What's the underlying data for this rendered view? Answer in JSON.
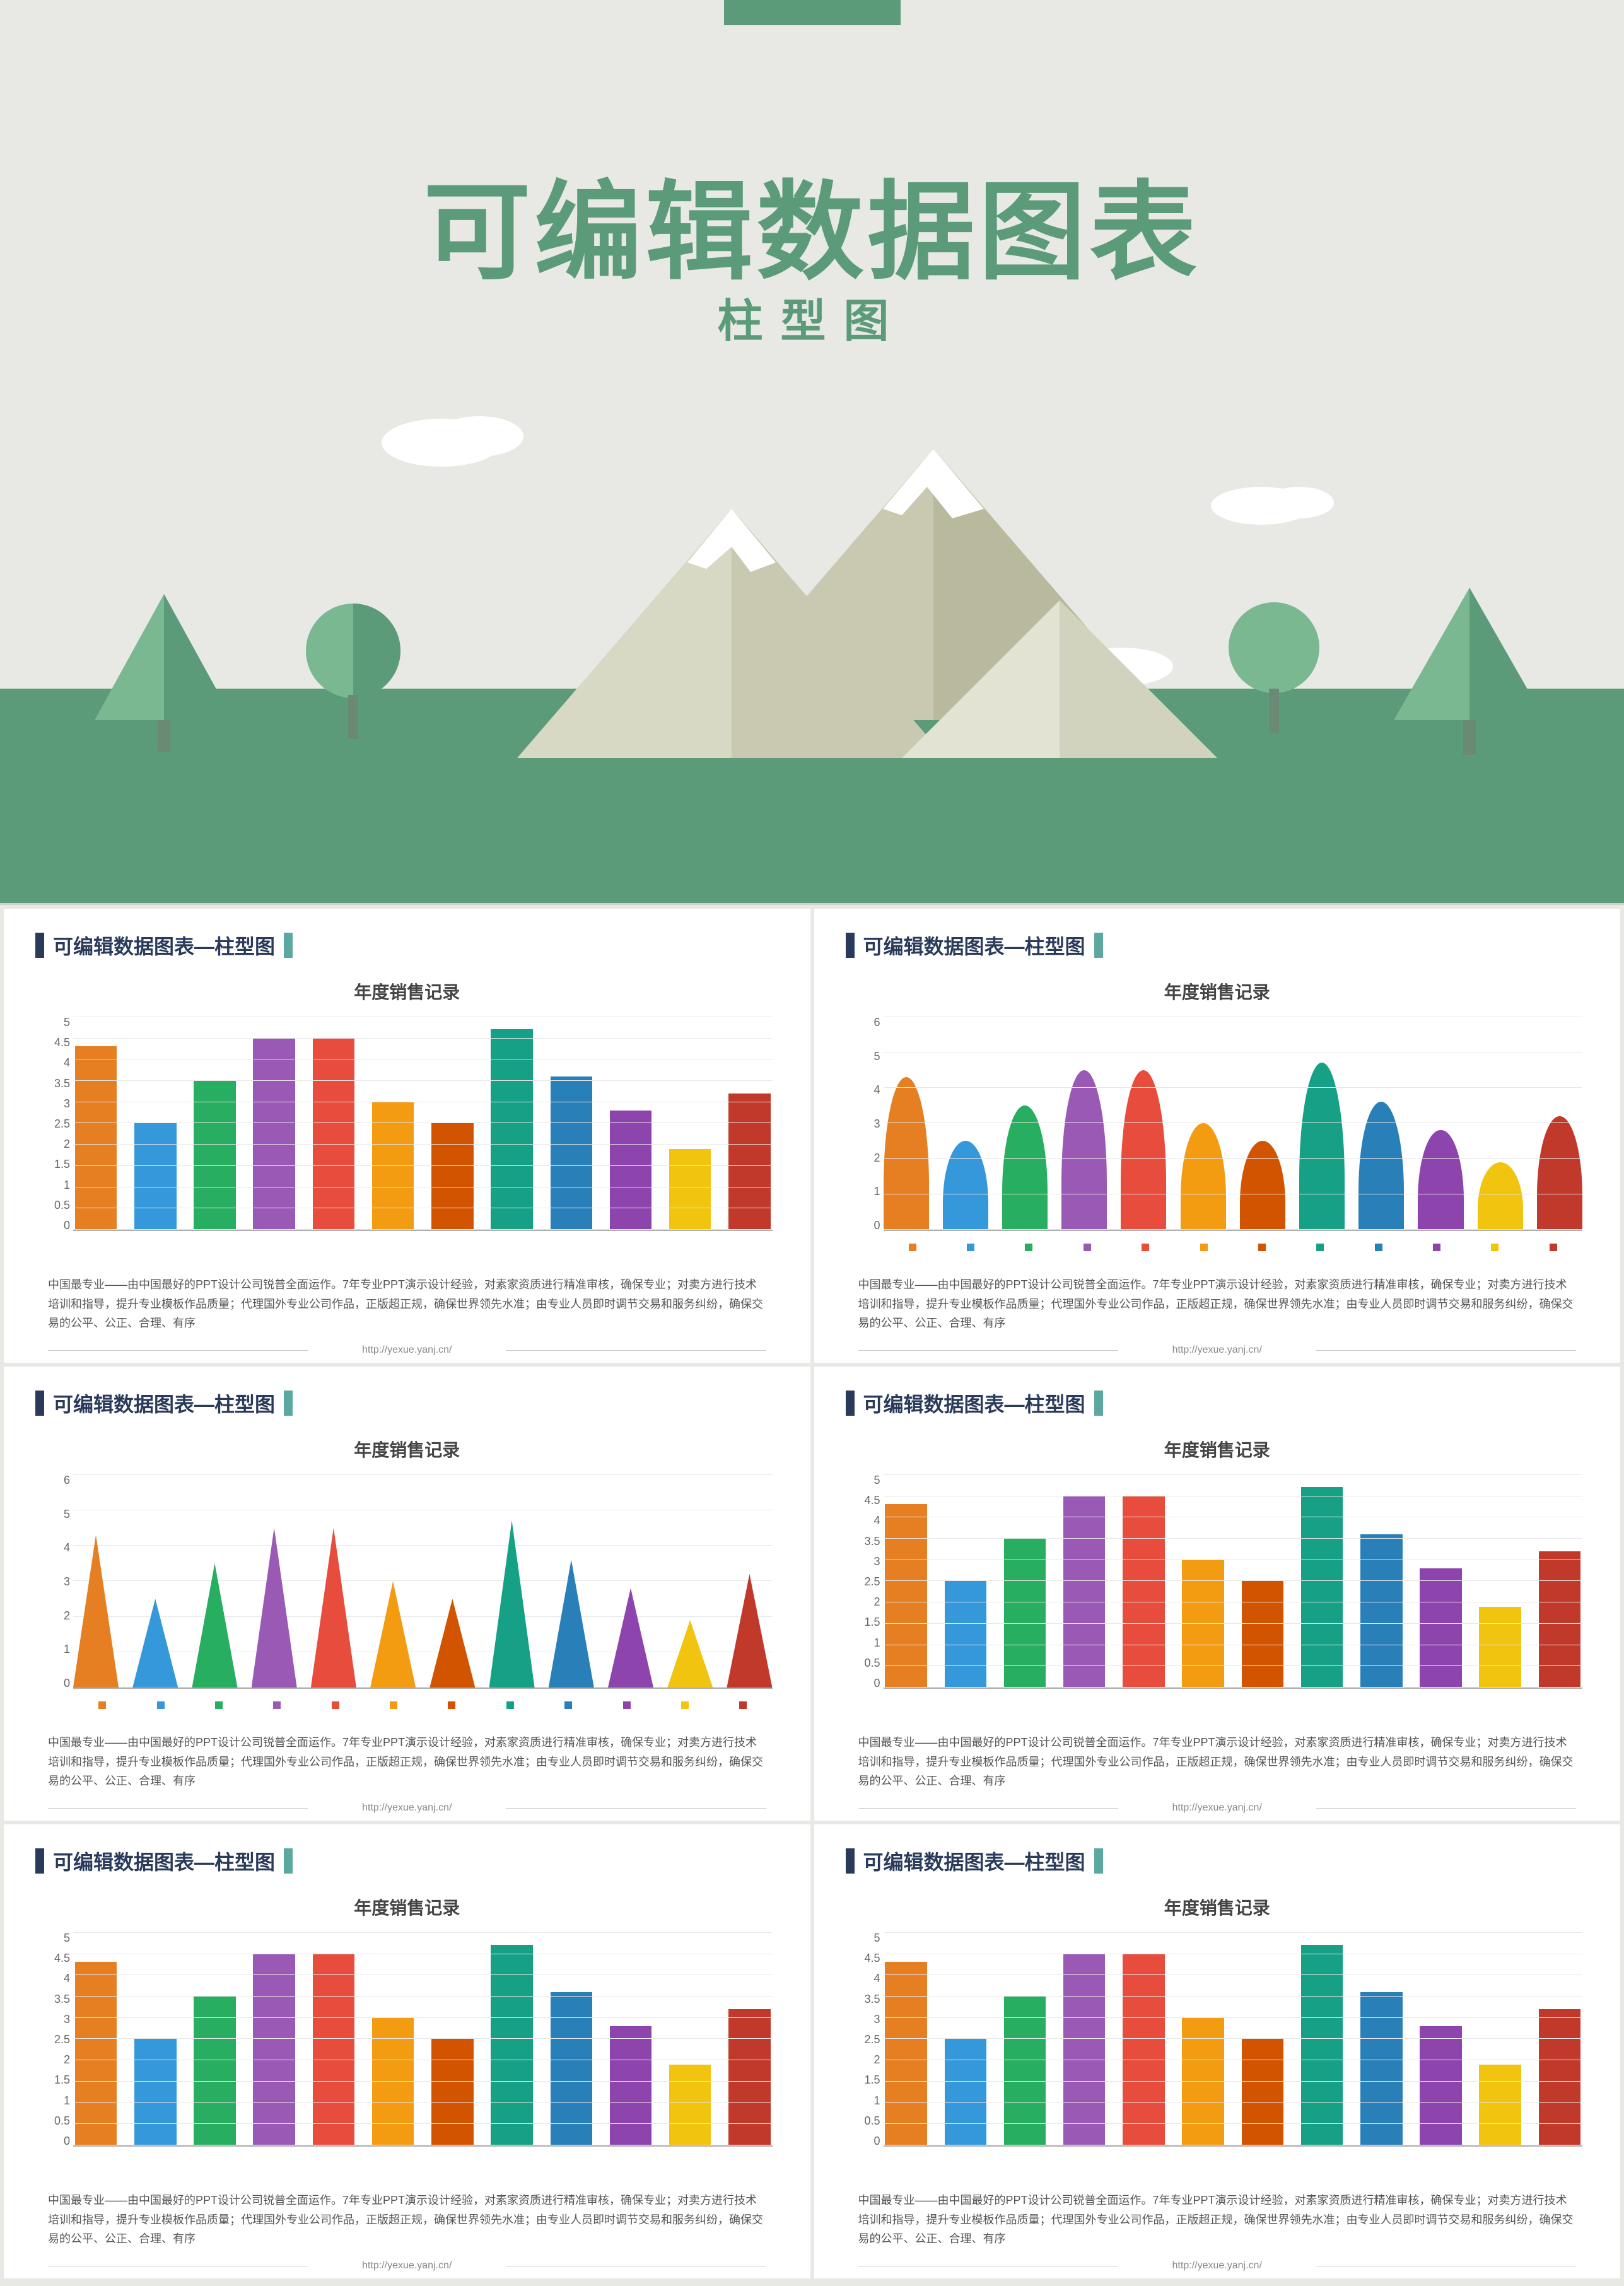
{
  "hero": {
    "title": "可编辑数据图表",
    "subtitle": "柱型图",
    "accent_color": "#5c9b7a",
    "bg_color": "#e8e8e4",
    "ground_color": "#5c9b7a"
  },
  "slide_common": {
    "title": "可编辑数据图表—柱型图",
    "chart_title": "年度销售记录",
    "desc": "中国最专业——由中国最好的PPT设计公司锐普全面运作。7年专业PPT演示设计经验，对素家资质进行精准审核，确保专业；对卖方进行技术培训和指导，提升专业模板作品质量；代理国外专业公司作品，正版超正规，确保世界领先水准；由专业人员即时调节交易和服务纠纷，确保交易的公平、公正、合理、有序",
    "url": "http://yexue.yanj.cn/",
    "header_bar_dark": "#2a3a5a",
    "header_bar_teal": "#5aa8a0"
  },
  "palette": [
    "#e67e22",
    "#3498db",
    "#27ae60",
    "#9b59b6",
    "#e74c3c",
    "#f39c12",
    "#d35400",
    "#16a085",
    "#2980b9",
    "#8e44ad",
    "#f1c40f",
    "#c0392b"
  ],
  "charts": [
    {
      "shape": "bar",
      "ymax": 5,
      "ytick_step": 0.5,
      "values": [
        4.3,
        2.5,
        3.5,
        4.5,
        4.5,
        3.0,
        2.5,
        4.7,
        3.6,
        2.8,
        1.9,
        3.2
      ],
      "colors_idx": [
        0,
        1,
        2,
        3,
        4,
        5,
        6,
        7,
        8,
        9,
        10,
        11
      ],
      "show_legend": false
    },
    {
      "shape": "bell",
      "ymax": 6,
      "ytick_step": 1,
      "values": [
        4.3,
        2.5,
        3.5,
        4.5,
        4.5,
        3.0,
        2.5,
        4.7,
        3.6,
        2.8,
        1.9,
        3.2
      ],
      "colors_idx": [
        0,
        1,
        2,
        3,
        4,
        5,
        6,
        7,
        8,
        9,
        10,
        11
      ],
      "show_legend": true
    },
    {
      "shape": "triangle",
      "ymax": 6,
      "ytick_step": 1,
      "values": [
        4.3,
        2.5,
        3.5,
        4.5,
        4.5,
        3.0,
        2.5,
        4.7,
        3.6,
        2.8,
        1.9,
        3.2
      ],
      "colors_idx": [
        0,
        1,
        2,
        3,
        4,
        5,
        6,
        7,
        8,
        9,
        10,
        11
      ],
      "show_legend": true
    },
    {
      "shape": "bar",
      "ymax": 5,
      "ytick_step": 0.5,
      "values": [
        4.3,
        2.5,
        3.5,
        4.5,
        4.5,
        3.0,
        2.5,
        4.7,
        3.6,
        2.8,
        1.9,
        3.2
      ],
      "colors_idx": [
        0,
        1,
        2,
        3,
        4,
        5,
        6,
        7,
        8,
        9,
        10,
        11
      ],
      "show_legend": false
    },
    {
      "shape": "bar",
      "ymax": 5,
      "ytick_step": 0.5,
      "values": [
        4.3,
        2.5,
        3.5,
        4.5,
        4.5,
        3.0,
        2.5,
        4.7,
        3.6,
        2.8,
        1.9,
        3.2
      ],
      "colors_idx": [
        0,
        1,
        2,
        3,
        4,
        5,
        6,
        7,
        8,
        9,
        10,
        11
      ],
      "show_legend": false
    },
    {
      "shape": "bar",
      "ymax": 5,
      "ytick_step": 0.5,
      "values": [
        4.3,
        2.5,
        3.5,
        4.5,
        4.5,
        3.0,
        2.5,
        4.7,
        3.6,
        2.8,
        1.9,
        3.2
      ],
      "colors_idx": [
        0,
        1,
        2,
        3,
        4,
        5,
        6,
        7,
        8,
        9,
        10,
        11
      ],
      "show_legend": false
    }
  ]
}
